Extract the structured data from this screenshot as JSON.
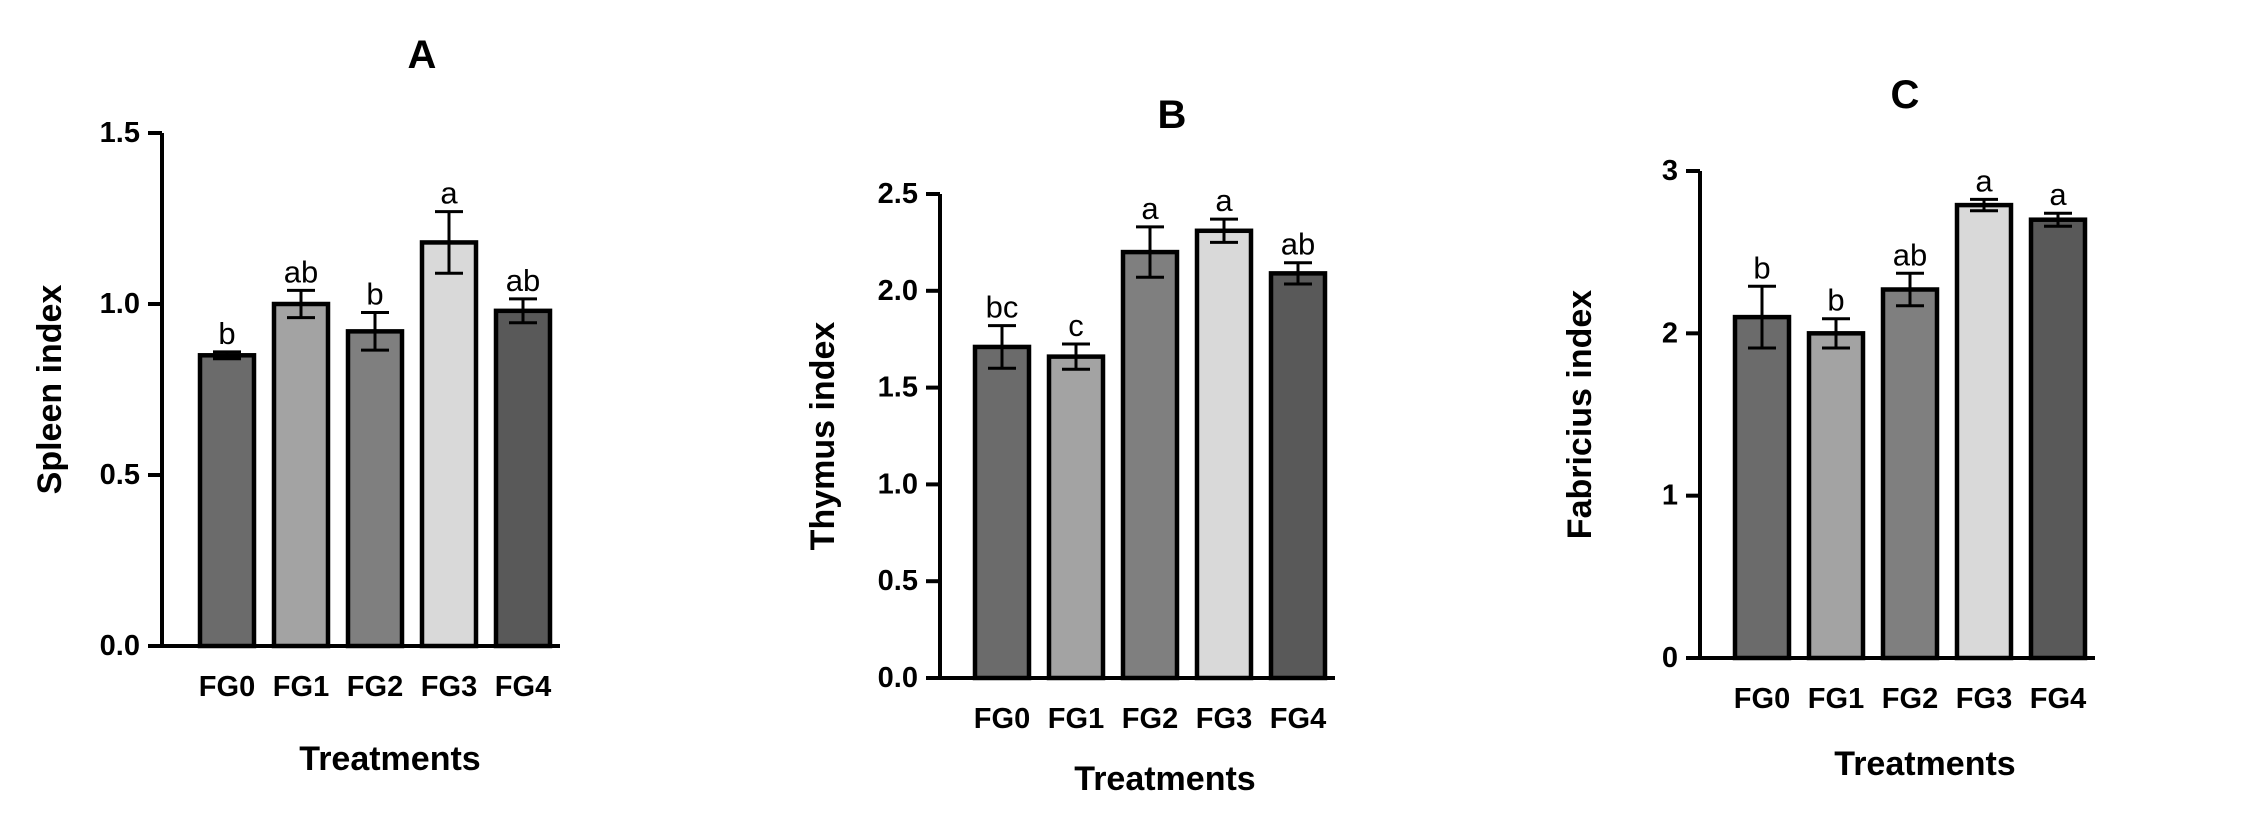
{
  "chart_data": [
    {
      "type": "bar",
      "title": "A",
      "xlabel": "Treatments",
      "ylabel": "Spleen index",
      "ylim": [
        0,
        1.5
      ],
      "yticks": [
        "0.0",
        "0.5",
        "1.0",
        "1.5"
      ],
      "categories": [
        "FG0",
        "FG1",
        "FG2",
        "FG3",
        "FG4"
      ],
      "values": [
        0.85,
        1.0,
        0.92,
        1.18,
        0.98
      ],
      "errors": [
        0.01,
        0.04,
        0.055,
        0.09,
        0.035
      ],
      "letters": [
        "b",
        "ab",
        "b",
        "a",
        "ab"
      ],
      "colors": [
        "#6b6b6b",
        "#a3a3a3",
        "#7f7f7f",
        "#d9d9d9",
        "#595959"
      ]
    },
    {
      "type": "bar",
      "title": "B",
      "xlabel": "Treatments",
      "ylabel": "Thymus index",
      "ylim": [
        0,
        2.5
      ],
      "yticks": [
        "0.0",
        "0.5",
        "1.0",
        "1.5",
        "2.0",
        "2.5"
      ],
      "categories": [
        "FG0",
        "FG1",
        "FG2",
        "FG3",
        "FG4"
      ],
      "values": [
        1.71,
        1.66,
        2.2,
        2.31,
        2.09
      ],
      "errors": [
        0.11,
        0.065,
        0.13,
        0.06,
        0.055
      ],
      "letters": [
        "bc",
        "c",
        "a",
        "a",
        "ab"
      ],
      "colors": [
        "#6b6b6b",
        "#a3a3a3",
        "#7f7f7f",
        "#d9d9d9",
        "#595959"
      ]
    },
    {
      "type": "bar",
      "title": "C",
      "xlabel": "Treatments",
      "ylabel": "Fabricius index",
      "ylim": [
        0,
        3
      ],
      "yticks": [
        "0",
        "1",
        "2",
        "3"
      ],
      "categories": [
        "FG0",
        "FG1",
        "FG2",
        "FG3",
        "FG4"
      ],
      "values": [
        2.1,
        2.0,
        2.27,
        2.79,
        2.7
      ],
      "errors": [
        0.19,
        0.09,
        0.1,
        0.035,
        0.04
      ],
      "letters": [
        "b",
        "b",
        "ab",
        "a",
        "a"
      ],
      "colors": [
        "#6b6b6b",
        "#a3a3a3",
        "#7f7f7f",
        "#d9d9d9",
        "#595959"
      ]
    }
  ]
}
